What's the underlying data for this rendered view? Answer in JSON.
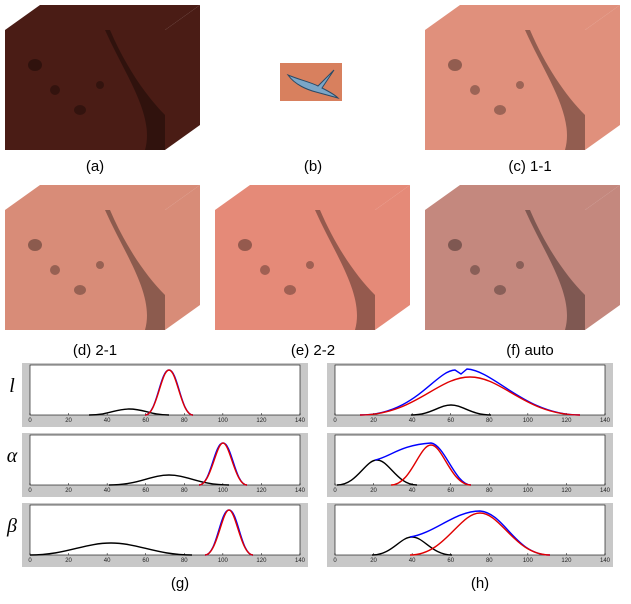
{
  "panels": [
    {
      "caption": "(a)"
    },
    {
      "caption": "(b)"
    },
    {
      "caption": "(c) 1-1"
    },
    {
      "caption": "(d) 2-1"
    },
    {
      "caption": "(e) 2-2"
    },
    {
      "caption": "(f) auto"
    }
  ],
  "plots": {
    "row_labels": [
      "l",
      "α",
      "β"
    ],
    "xticks": [
      0,
      20,
      40,
      60,
      80,
      100,
      120,
      140
    ],
    "captions": [
      "(g)",
      "(h)"
    ]
  }
}
